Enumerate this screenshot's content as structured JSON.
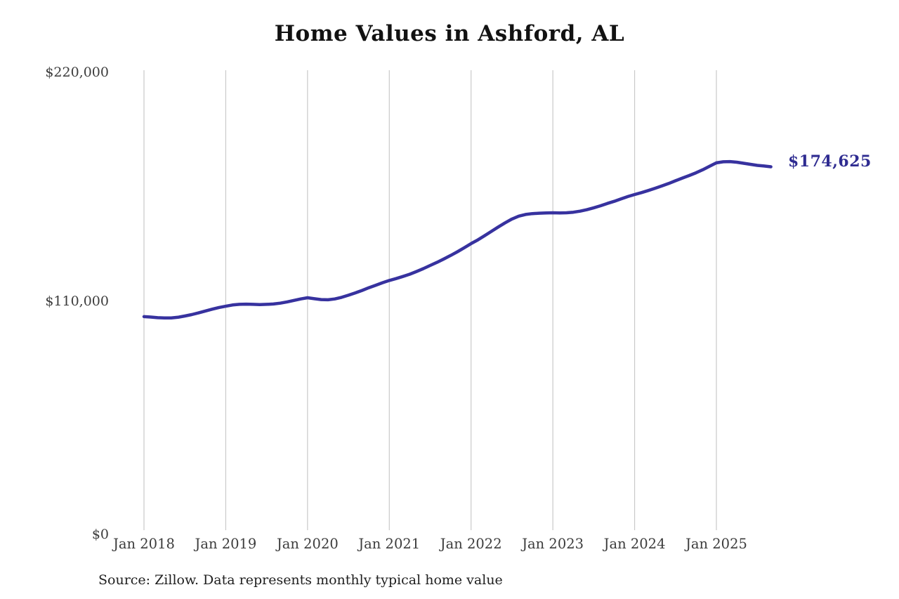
{
  "title": "Home Values in Ashford, AL",
  "source_note": "Source: Zillow. Data represents monthly typical home value",
  "end_label": "$174,625",
  "colors": {
    "line": "#37329f",
    "annotation": "#2f2c91",
    "grid": "#c9c9c9",
    "title": "#121212",
    "axis_text": "#3c3c3c",
    "source_text": "#1f1f1f",
    "background": "#ffffff"
  },
  "chart_data": {
    "type": "line",
    "title": "Home Values in Ashford, AL",
    "xlabel": "",
    "ylabel": "",
    "ylim": [
      0,
      220000
    ],
    "grid": "vertical-only",
    "legend": "none",
    "x_start_month": "Jan 2018",
    "x_end_month": "Sep 2025",
    "months_per_point": 1,
    "x_tick_labels": [
      "Jan 2018",
      "Jan 2019",
      "Jan 2020",
      "Jan 2021",
      "Jan 2022",
      "Jan 2023",
      "Jan 2024",
      "Jan 2025"
    ],
    "y_ticks": [
      {
        "label": "$220,000",
        "value": 220000
      },
      {
        "label": "$110,000",
        "value": 110000
      },
      {
        "label": "$0",
        "value": 0
      }
    ],
    "end_annotation": "$174,625",
    "series": [
      {
        "name": "Monthly typical home value",
        "final_value": 174625,
        "values": [
          102600,
          102400,
          102100,
          102000,
          102000,
          102300,
          102900,
          103600,
          104400,
          105300,
          106200,
          107000,
          107600,
          108200,
          108500,
          108600,
          108500,
          108400,
          108500,
          108700,
          109100,
          109700,
          110400,
          111100,
          111700,
          111200,
          110800,
          110700,
          111100,
          111900,
          112900,
          114000,
          115200,
          116500,
          117700,
          118900,
          120000,
          120900,
          121900,
          123000,
          124300,
          125700,
          127200,
          128700,
          130300,
          132000,
          133800,
          135700,
          137700,
          139500,
          141500,
          143600,
          145700,
          147700,
          149500,
          150900,
          151700,
          152100,
          152300,
          152400,
          152500,
          152400,
          152500,
          152800,
          153300,
          154000,
          154900,
          155900,
          157000,
          158000,
          159200,
          160300,
          161300,
          162200,
          163200,
          164300,
          165400,
          166600,
          167900,
          169200,
          170400,
          171700,
          173200,
          174900,
          176500,
          177000,
          177100,
          176800,
          176300,
          175800,
          175300,
          175000,
          174625
        ]
      }
    ]
  }
}
